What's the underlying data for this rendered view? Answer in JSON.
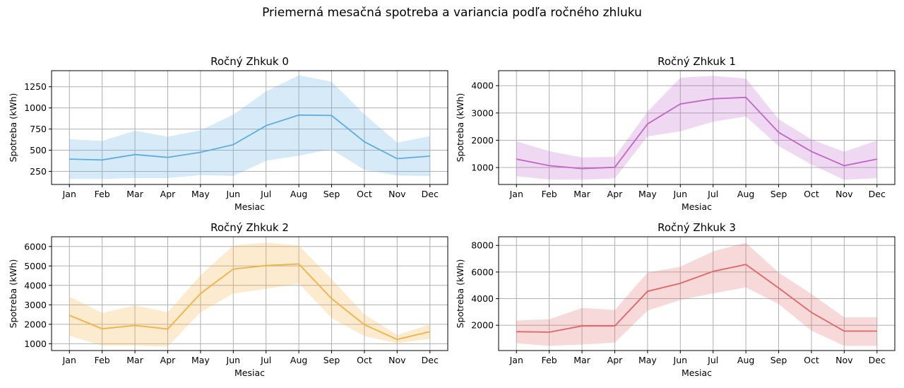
{
  "figure": {
    "title": "Priemerná mesačná spotreba a variancia podľa ročného zhluku"
  },
  "chart_data": [
    {
      "type": "line",
      "title": "Ročný Zhkuk 0",
      "xlabel": "Mesiac",
      "ylabel": "Spotreba (kWh)",
      "color": "#5DADE2",
      "categories": [
        "Jan",
        "Feb",
        "Mar",
        "Apr",
        "May",
        "Jun",
        "Jul",
        "Aug",
        "Sep",
        "Oct",
        "Nov",
        "Dec"
      ],
      "yticks": [
        250,
        500,
        750,
        1000,
        1250
      ],
      "ylim": [
        95,
        1440
      ],
      "grid": true,
      "series": [
        {
          "values": [
            395,
            385,
            448,
            415,
            475,
            565,
            790,
            915,
            910,
            600,
            400,
            430
          ],
          "lower": [
            160,
            160,
            170,
            170,
            205,
            195,
            375,
            435,
            510,
            270,
            200,
            195
          ],
          "upper": [
            630,
            610,
            730,
            660,
            735,
            920,
            1195,
            1385,
            1310,
            925,
            590,
            665
          ]
        }
      ]
    },
    {
      "type": "line",
      "title": "Ročný Zhkuk 1",
      "xlabel": "Mesiac",
      "ylabel": "Spotreba (kWh)",
      "color": "#C165C8",
      "categories": [
        "Jan",
        "Feb",
        "Mar",
        "Apr",
        "May",
        "Jun",
        "Jul",
        "Aug",
        "Sep",
        "Oct",
        "Nov",
        "Dec"
      ],
      "yticks": [
        1000,
        2000,
        3000,
        4000
      ],
      "ylim": [
        380,
        4550
      ],
      "grid": true,
      "series": [
        {
          "values": [
            1310,
            1070,
            960,
            1010,
            2600,
            3330,
            3520,
            3570,
            2290,
            1590,
            1070,
            1310
          ],
          "lower": [
            680,
            560,
            550,
            600,
            2140,
            2330,
            2680,
            2870,
            1790,
            1110,
            550,
            610
          ],
          "upper": [
            1960,
            1600,
            1370,
            1390,
            3050,
            4290,
            4360,
            4260,
            2770,
            2030,
            1580,
            1990
          ]
        }
      ]
    },
    {
      "type": "line",
      "title": "Ročný Zhkuk 2",
      "xlabel": "Mesiac",
      "ylabel": "Spotreba (kWh)",
      "color": "#F5B041",
      "categories": [
        "Jan",
        "Feb",
        "Mar",
        "Apr",
        "May",
        "Jun",
        "Jul",
        "Aug",
        "Sep",
        "Oct",
        "Nov",
        "Dec"
      ],
      "yticks": [
        1000,
        2000,
        3000,
        4000,
        5000,
        6000
      ],
      "ylim": [
        650,
        6500
      ],
      "grid": true,
      "series": [
        {
          "values": [
            2460,
            1770,
            1940,
            1760,
            3580,
            4840,
            5020,
            5100,
            3320,
            1980,
            1220,
            1620
          ],
          "lower": [
            1410,
            900,
            900,
            850,
            2620,
            3580,
            3820,
            4100,
            2320,
            1390,
            1020,
            1250
          ],
          "upper": [
            3430,
            2580,
            2970,
            2620,
            4520,
            6050,
            6200,
            6050,
            4320,
            2510,
            1450,
            1990
          ]
        }
      ]
    },
    {
      "type": "line",
      "title": "Ročný Zhkuk 3",
      "xlabel": "Mesiac",
      "ylabel": "Spotreba (kWh)",
      "color": "#E06666",
      "categories": [
        "Jan",
        "Feb",
        "Mar",
        "Apr",
        "May",
        "Jun",
        "Jul",
        "Aug",
        "Sep",
        "Oct",
        "Nov",
        "Dec"
      ],
      "yticks": [
        2000,
        4000,
        6000,
        8000
      ],
      "ylim": [
        100,
        8650
      ],
      "grid": true,
      "series": [
        {
          "values": [
            1520,
            1480,
            1950,
            1950,
            4550,
            5150,
            6050,
            6570,
            4800,
            2970,
            1560,
            1560
          ],
          "lower": [
            650,
            450,
            550,
            700,
            3100,
            3900,
            4400,
            4850,
            3600,
            1600,
            450,
            450
          ],
          "upper": [
            2350,
            2450,
            3300,
            3150,
            5950,
            6400,
            7550,
            8200,
            5950,
            4350,
            2600,
            2600
          ]
        }
      ]
    }
  ]
}
